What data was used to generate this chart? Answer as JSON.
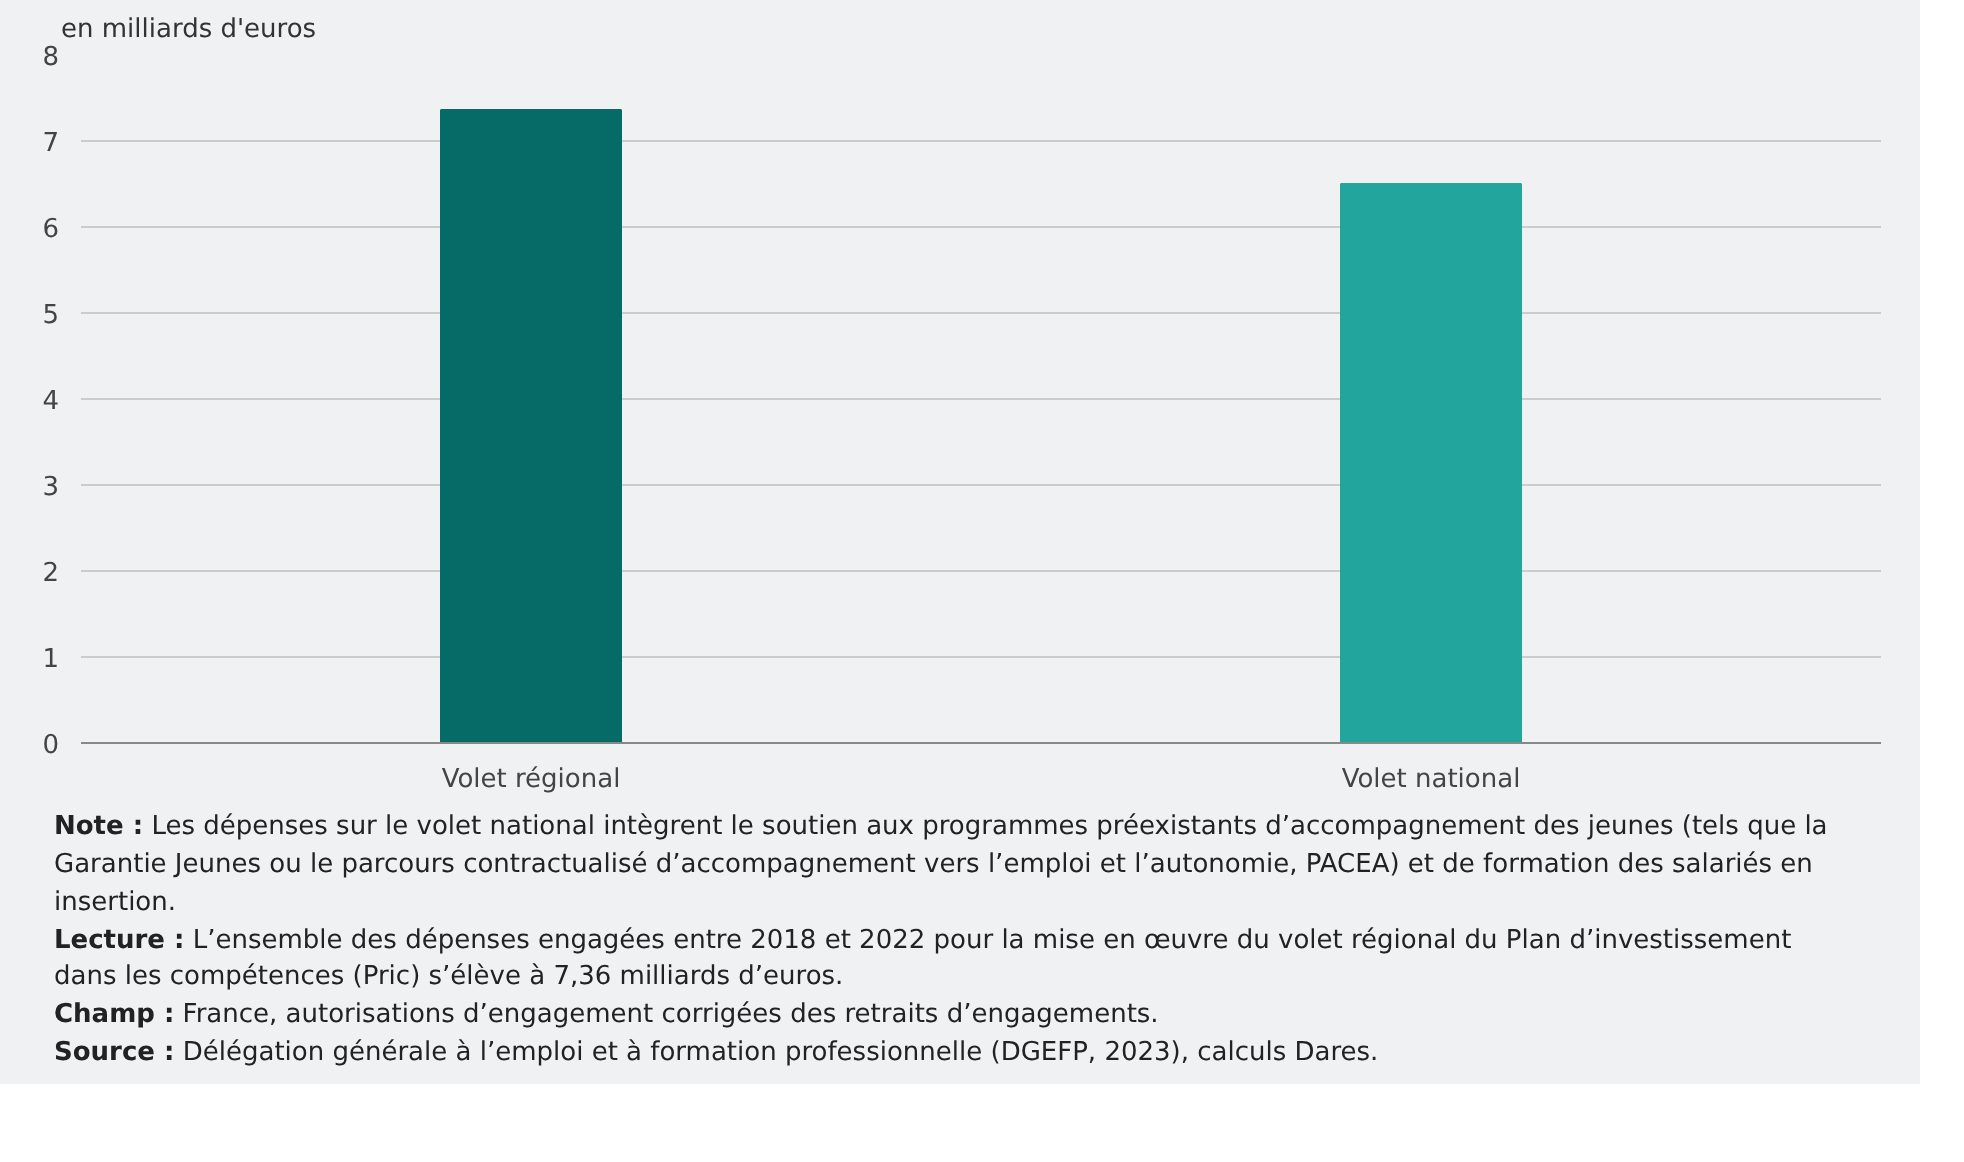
{
  "chart_data": {
    "type": "bar",
    "ylabel": "en milliards d'euros",
    "categories": [
      "Volet régional",
      "Volet national"
    ],
    "values": [
      7.36,
      6.5
    ],
    "colors": [
      "#066a66",
      "#22a59c"
    ],
    "ylim": [
      0,
      8
    ],
    "yticks": [
      0,
      1,
      2,
      3,
      4,
      5,
      6,
      7,
      8
    ],
    "grid": "y",
    "annotations": [
      "Note : Les dépenses sur le volet national intègrent le soutien aux programmes préexistants d’accompagnement des jeunes (tels que la Garantie Jeunes ou le parcours contractualisé d’accompagnement vers l’emploi et l’autonomie, PACEA) et de formation des salariés en insertion.",
      "Lecture : L’ensemble des dépenses engagées entre 2018 et 2022 pour la mise en œuvre du volet régional du Plan d’investissement dans les compétences (Pric) s’élève à 7,36 milliards d’euros.",
      "Champ : France, autorisations d’engagement corrigées des retraits d’engagements.",
      "Source : Délégation générale à l’emploi et à formation professionnelle (DGEFP, 2023), calculs Dares."
    ]
  }
}
